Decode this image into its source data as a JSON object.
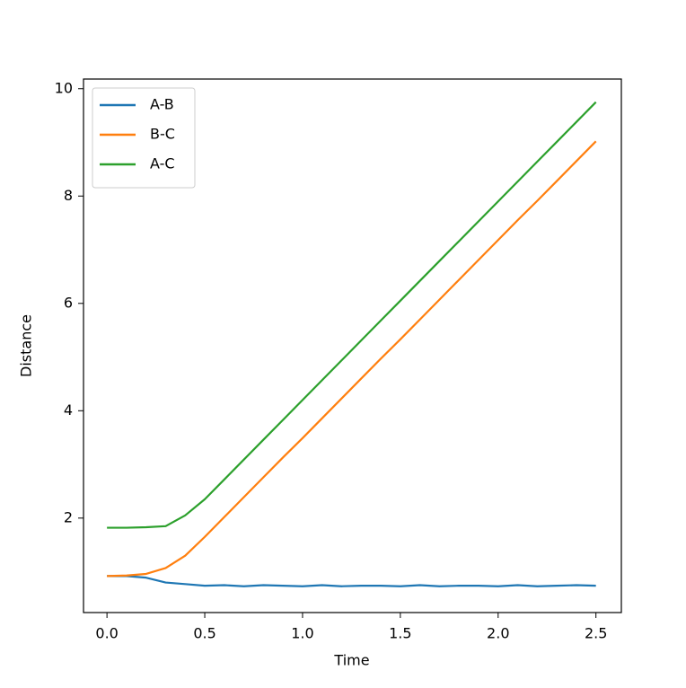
{
  "chart_data": {
    "type": "line",
    "xlabel": "Time",
    "ylabel": "Distance",
    "x": [
      0,
      0.1,
      0.2,
      0.3,
      0.4,
      0.5,
      0.6,
      0.7,
      0.8,
      0.9,
      1.0,
      1.1,
      1.2,
      1.3,
      1.4,
      1.5,
      1.6,
      1.7,
      1.8,
      1.9,
      2.0,
      2.1,
      2.2,
      2.3,
      2.4,
      2.5
    ],
    "series": [
      {
        "name": "A-B",
        "color": "#1f77b4",
        "values": [
          0.92,
          0.92,
          0.89,
          0.8,
          0.77,
          0.74,
          0.75,
          0.73,
          0.75,
          0.74,
          0.73,
          0.75,
          0.73,
          0.74,
          0.74,
          0.73,
          0.75,
          0.73,
          0.74,
          0.74,
          0.73,
          0.75,
          0.73,
          0.74,
          0.75,
          0.74
        ]
      },
      {
        "name": "B-C",
        "color": "#ff7f0e",
        "values": [
          0.92,
          0.93,
          0.96,
          1.07,
          1.3,
          1.65,
          2.02,
          2.39,
          2.76,
          3.13,
          3.49,
          3.86,
          4.23,
          4.6,
          4.97,
          5.33,
          5.7,
          6.07,
          6.44,
          6.81,
          7.18,
          7.55,
          7.91,
          8.28,
          8.65,
          9.02
        ]
      },
      {
        "name": "A-C",
        "color": "#2ca02c",
        "values": [
          1.82,
          1.82,
          1.83,
          1.85,
          2.05,
          2.35,
          2.72,
          3.09,
          3.46,
          3.83,
          4.2,
          4.57,
          4.94,
          5.31,
          5.68,
          6.05,
          6.42,
          6.79,
          7.16,
          7.53,
          7.9,
          8.27,
          8.64,
          9.01,
          9.38,
          9.75
        ]
      }
    ],
    "xlim": [
      -0.12,
      2.63
    ],
    "ylim": [
      0.24,
      10.18
    ],
    "xticks": [
      {
        "value": 0,
        "label": "0.0"
      },
      0.5,
      {
        "value": 1,
        "label": "1.0"
      },
      1.5,
      {
        "value": 2,
        "label": "2.0"
      },
      2.5
    ],
    "yticks": [
      2,
      4,
      6,
      8,
      10
    ],
    "grid": false,
    "legend": "upper left"
  }
}
